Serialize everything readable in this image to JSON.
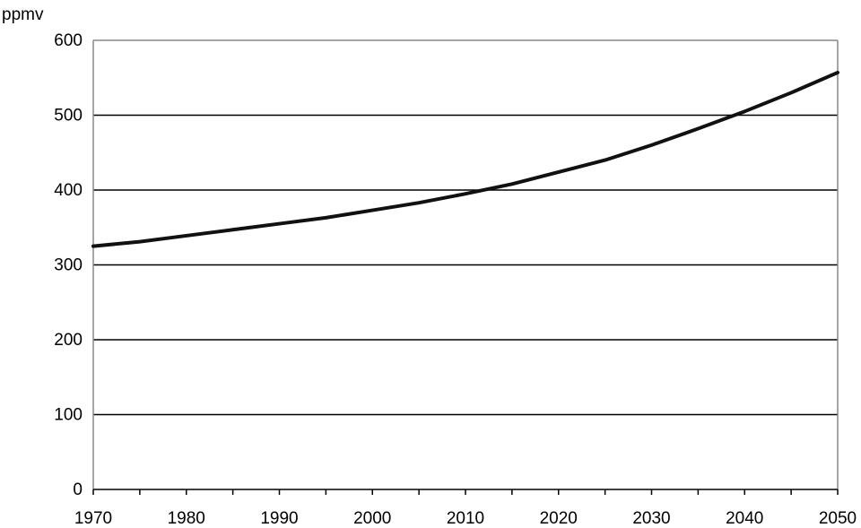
{
  "chart_data": {
    "type": "line",
    "title": "",
    "xlabel": "",
    "ylabel": "ppmv",
    "x": [
      1970,
      1975,
      1980,
      1985,
      1990,
      1995,
      2000,
      2005,
      2010,
      2015,
      2020,
      2025,
      2030,
      2035,
      2040,
      2045,
      2050
    ],
    "series": [
      {
        "values": [
          325,
          331,
          339,
          347,
          355,
          363,
          373,
          383,
          395,
          408,
          424,
          440,
          460,
          482,
          505,
          530,
          557
        ]
      }
    ],
    "xlim": [
      1970,
      2050
    ],
    "ylim": [
      0,
      600
    ],
    "xticks": [
      "1970",
      "1980",
      "1990",
      "2000",
      "2010",
      "2020",
      "2030",
      "2040",
      "2050"
    ],
    "yticks": [
      "0",
      "100",
      "200",
      "300",
      "400",
      "500",
      "600"
    ],
    "grid": "horizontal",
    "line_color": "#111111"
  }
}
